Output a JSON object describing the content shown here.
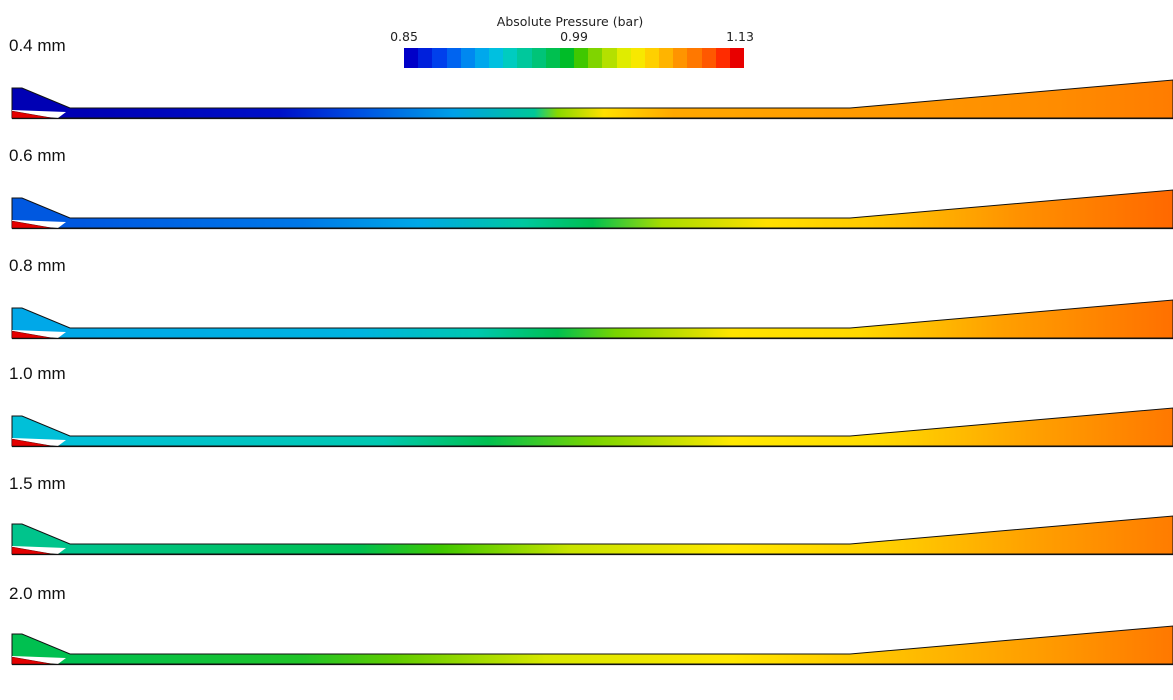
{
  "legend": {
    "title": "Absolute Pressure (bar)",
    "min_label": "0.85",
    "mid_label": "0.99",
    "max_label": "1.13",
    "min": 0.85,
    "max": 1.13,
    "colors": [
      "#0000c8",
      "#0020dc",
      "#0040ec",
      "#0064f0",
      "#0088f0",
      "#00a8ec",
      "#00c0e0",
      "#00ccc0",
      "#00c89c",
      "#00c478",
      "#00c050",
      "#00bc28",
      "#40c800",
      "#80d400",
      "#b4e000",
      "#e0ec00",
      "#f8e800",
      "#ffd000",
      "#ffb400",
      "#ff9400",
      "#ff7800",
      "#ff5800",
      "#ff2c00",
      "#e80000"
    ]
  },
  "cases": [
    {
      "label": "0.4 mm",
      "stops": [
        [
          "0.000",
          "#0000b4"
        ],
        [
          "0.060",
          "#0000b4"
        ],
        [
          "0.230",
          "#0010c8"
        ],
        [
          "0.290",
          "#0048e0"
        ],
        [
          "0.380",
          "#00a0e8"
        ],
        [
          "0.450",
          "#00c898"
        ],
        [
          "0.470",
          "#88d800"
        ],
        [
          "0.510",
          "#ffe000"
        ],
        [
          "0.570",
          "#ffa800"
        ],
        [
          "0.730",
          "#ff9a00"
        ],
        [
          "0.900",
          "#ff8c00"
        ],
        [
          "1.000",
          "#ff7c00"
        ]
      ]
    },
    {
      "label": "0.6 mm",
      "stops": [
        [
          "0.000",
          "#0058e0"
        ],
        [
          "0.060",
          "#0058e0"
        ],
        [
          "0.250",
          "#0078e8"
        ],
        [
          "0.350",
          "#00a8e8"
        ],
        [
          "0.440",
          "#00c8a0"
        ],
        [
          "0.500",
          "#00c050"
        ],
        [
          "0.560",
          "#a8dc00"
        ],
        [
          "0.650",
          "#ffe000"
        ],
        [
          "0.740",
          "#ffc800"
        ],
        [
          "0.870",
          "#ff9000"
        ],
        [
          "1.000",
          "#ff6800"
        ]
      ]
    },
    {
      "label": "0.8 mm",
      "stops": [
        [
          "0.000",
          "#00a8e8"
        ],
        [
          "0.060",
          "#00a8e8"
        ],
        [
          "0.300",
          "#00b4e0"
        ],
        [
          "0.400",
          "#00c8b0"
        ],
        [
          "0.470",
          "#00c050"
        ],
        [
          "0.520",
          "#78d400"
        ],
        [
          "0.620",
          "#ffe400"
        ],
        [
          "0.730",
          "#ffd800"
        ],
        [
          "0.850",
          "#ffa000"
        ],
        [
          "1.000",
          "#ff7000"
        ]
      ]
    },
    {
      "label": "1.0 mm",
      "stops": [
        [
          "0.000",
          "#00c0d8"
        ],
        [
          "0.060",
          "#00c0d8"
        ],
        [
          "0.320",
          "#00c8b0"
        ],
        [
          "0.410",
          "#00c050"
        ],
        [
          "0.500",
          "#78d400"
        ],
        [
          "0.620",
          "#ffe800"
        ],
        [
          "0.740",
          "#ffdc00"
        ],
        [
          "0.880",
          "#ffa000"
        ],
        [
          "1.000",
          "#ff7800"
        ]
      ]
    },
    {
      "label": "1.5 mm",
      "stops": [
        [
          "0.000",
          "#00c48c"
        ],
        [
          "0.060",
          "#00c48c"
        ],
        [
          "0.300",
          "#00c050"
        ],
        [
          "0.370",
          "#40c800"
        ],
        [
          "0.480",
          "#c8e400"
        ],
        [
          "0.620",
          "#ffe800"
        ],
        [
          "0.750",
          "#ffd000"
        ],
        [
          "0.880",
          "#ffa000"
        ],
        [
          "1.000",
          "#ff7c00"
        ]
      ]
    },
    {
      "label": "2.0 mm",
      "stops": [
        [
          "0.000",
          "#00c050"
        ],
        [
          "0.060",
          "#00c050"
        ],
        [
          "0.250",
          "#20c428"
        ],
        [
          "0.330",
          "#60cc00"
        ],
        [
          "0.460",
          "#d8e800"
        ],
        [
          "0.620",
          "#ffe800"
        ],
        [
          "0.760",
          "#ffc000"
        ],
        [
          "0.900",
          "#ff9800"
        ],
        [
          "1.000",
          "#ff7800"
        ]
      ]
    }
  ]
}
